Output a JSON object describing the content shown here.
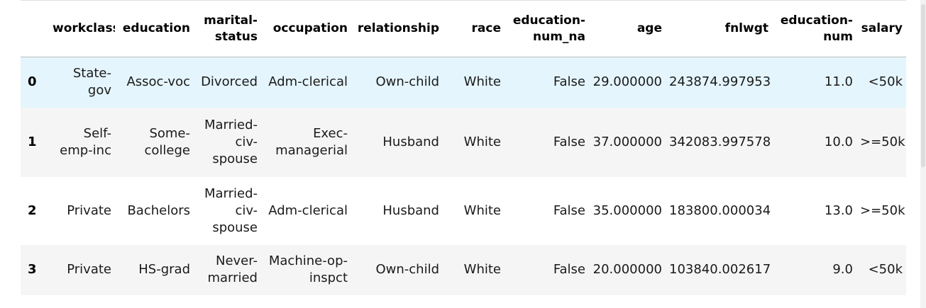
{
  "table": {
    "index_header": "",
    "columns": [
      "workclass",
      "education",
      "marital-status",
      "occupation",
      "relationship",
      "race",
      "education-num_na",
      "age",
      "fnlwgt",
      "education-num",
      "salary"
    ],
    "rows": [
      {
        "index": "0",
        "cells": [
          "State-gov",
          "Assoc-voc",
          "Divorced",
          "Adm-clerical",
          "Own-child",
          "White",
          "False",
          "29.000000",
          "243874.997953",
          "11.0",
          "<50k"
        ]
      },
      {
        "index": "1",
        "cells": [
          "Self-emp-inc",
          "Some-college",
          "Married-civ-spouse",
          "Exec-managerial",
          "Husband",
          "White",
          "False",
          "37.000000",
          "342083.997578",
          "10.0",
          ">=50k"
        ]
      },
      {
        "index": "2",
        "cells": [
          "Private",
          "Bachelors",
          "Married-civ-spouse",
          "Adm-clerical",
          "Husband",
          "White",
          "False",
          "35.000000",
          "183800.000034",
          "13.0",
          ">=50k"
        ]
      },
      {
        "index": "3",
        "cells": [
          "Private",
          "HS-grad",
          "Never-married",
          "Machine-op-inspct",
          "Own-child",
          "White",
          "False",
          "20.000000",
          "103840.002617",
          "9.0",
          "<50k"
        ]
      }
    ]
  }
}
